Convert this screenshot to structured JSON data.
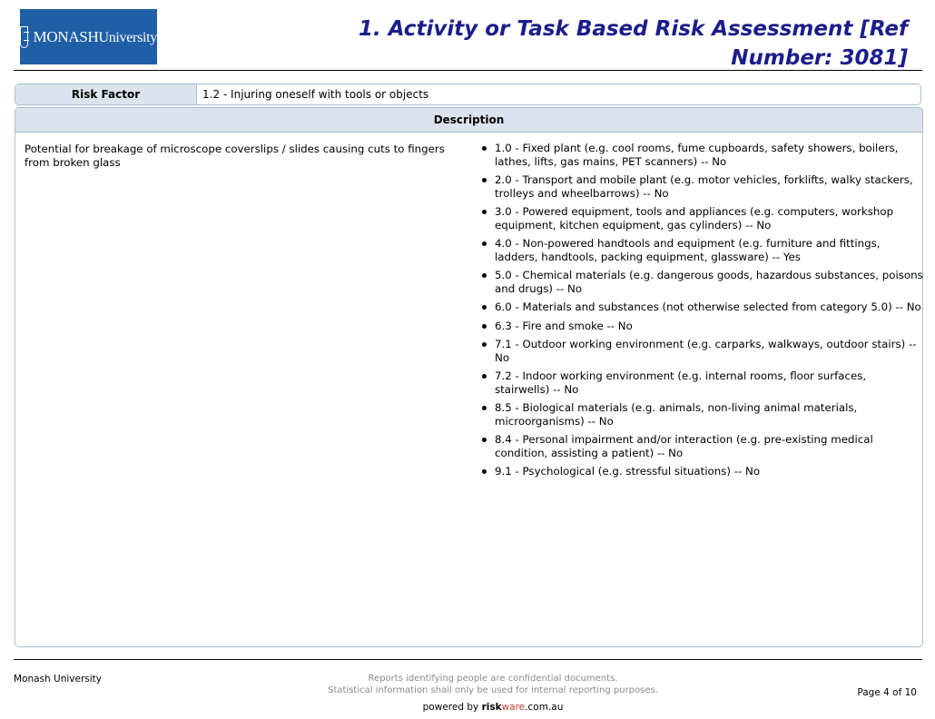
{
  "header": {
    "logo_text_1": "MONASH",
    "logo_text_2": "University",
    "title": "1. Activity or Task Based Risk Assessment [Ref Number: 3081]"
  },
  "risk_factor": {
    "label": "Risk Factor",
    "value": "1.2 - Injuring oneself with tools or objects"
  },
  "description": {
    "heading": "Description",
    "text": "Potential for breakage of microscope coverslips / slides causing cuts to fingers from broken glass",
    "hazards": [
      "1.0 - Fixed plant (e.g. cool rooms, fume cupboards, safety showers, boilers, lathes, lifts, gas mains, PET scanners)  --  No",
      "2.0 - Transport and mobile plant (e.g. motor vehicles, forklifts, walky stackers, trolleys and wheelbarrows)  --  No",
      "3.0 - Powered equipment, tools and appliances (e.g. computers, workshop equipment, kitchen equipment, gas cylinders)  --  No",
      "4.0 - Non-powered handtools and equipment (e.g. furniture and fittings, ladders, handtools, packing equipment, glassware)  --  Yes",
      "5.0 - Chemical materials (e.g. dangerous goods, hazardous substances, poisons and drugs)  --  No",
      "6.0 - Materials and substances (not otherwise selected from category 5.0)  --  No",
      "6.3 - Fire and smoke  --  No",
      "7.1 - Outdoor working environment (e.g. carparks, walkways, outdoor stairs)  --  No",
      "7.2 - Indoor working environment (e.g. internal rooms, floor surfaces, stairwells)  --  No",
      "8.5 - Biological materials (e.g. animals, non-living animal materials, microorganisms)  --  No",
      "8.4 - Personal impairment and/or interaction  (e.g. pre-existing medical condition, assisting a patient)  --  No",
      "9.1 - Psychological (e.g. stressful situations)  --  No"
    ]
  },
  "footer": {
    "org": "Monash University",
    "notice_1": "Reports identifying people are confidential documents.",
    "notice_2": "Statistical information shall only be used for internal reporting purposes.",
    "powered_by": "powered by",
    "brand_risk": "risk",
    "brand_ware": "ware",
    "brand_domain": ".com.au",
    "page": "Page 4 of 10"
  },
  "colors": {
    "title": "#1b1e8a",
    "logo_bg": "#1f5fa6",
    "header_cell_bg": "#dbe4ee",
    "border": "#a9bdd0"
  }
}
